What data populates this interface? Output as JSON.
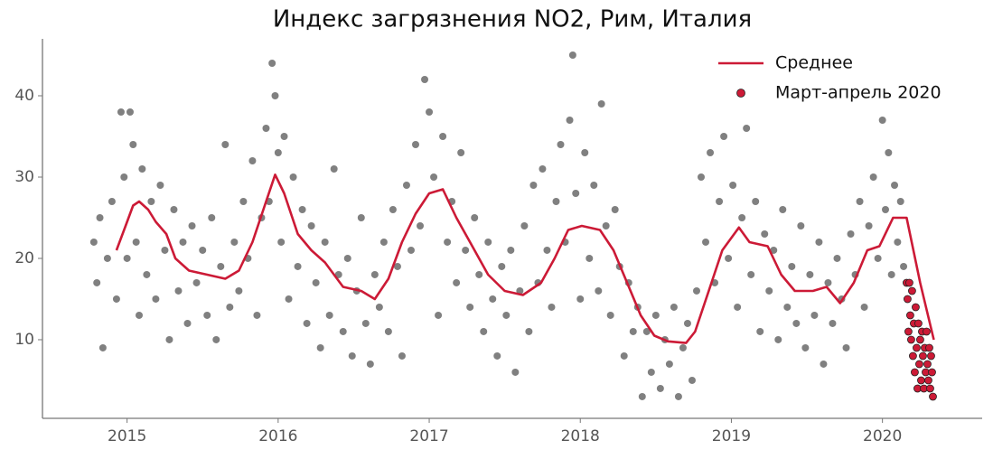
{
  "chart_data": {
    "type": "scatter",
    "title": "Индекс загрязнения NO2, Рим, Италия",
    "xlim": [
      2014.44,
      2020.66
    ],
    "xticks": [
      2015,
      2016,
      2017,
      2018,
      2019,
      2020
    ],
    "ylim": [
      0.33,
      47
    ],
    "yticks": [
      10,
      20,
      30,
      40
    ],
    "legend": "upper right",
    "series": [
      {
        "type": "scatter",
        "color": "#808080",
        "x": [
          2014.78,
          2014.8,
          2014.82,
          2014.84,
          2014.87,
          2014.9,
          2014.93,
          2014.96,
          2014.98,
          2015.0,
          2015.02,
          2015.04,
          2015.06,
          2015.08,
          2015.1,
          2015.13,
          2015.16,
          2015.19,
          2015.22,
          2015.25,
          2015.28,
          2015.31,
          2015.34,
          2015.37,
          2015.4,
          2015.43,
          2015.46,
          2015.5,
          2015.53,
          2015.56,
          2015.59,
          2015.62,
          2015.65,
          2015.68,
          2015.71,
          2015.74,
          2015.77,
          2015.8,
          2015.83,
          2015.86,
          2015.89,
          2015.92,
          2015.94,
          2015.96,
          2015.98,
          2016.0,
          2016.02,
          2016.04,
          2016.07,
          2016.1,
          2016.13,
          2016.16,
          2016.19,
          2016.22,
          2016.25,
          2016.28,
          2016.31,
          2016.34,
          2016.37,
          2016.4,
          2016.43,
          2016.46,
          2016.49,
          2016.52,
          2016.55,
          2016.58,
          2016.61,
          2016.64,
          2016.67,
          2016.7,
          2016.73,
          2016.76,
          2016.79,
          2016.82,
          2016.85,
          2016.88,
          2016.91,
          2016.94,
          2016.97,
          2017.0,
          2017.03,
          2017.06,
          2017.09,
          2017.12,
          2017.15,
          2017.18,
          2017.21,
          2017.24,
          2017.27,
          2017.3,
          2017.33,
          2017.36,
          2017.39,
          2017.42,
          2017.45,
          2017.48,
          2017.51,
          2017.54,
          2017.57,
          2017.6,
          2017.63,
          2017.66,
          2017.69,
          2017.72,
          2017.75,
          2017.78,
          2017.81,
          2017.84,
          2017.87,
          2017.9,
          2017.93,
          2017.95,
          2017.97,
          2018.0,
          2018.03,
          2018.06,
          2018.09,
          2018.12,
          2018.14,
          2018.17,
          2018.2,
          2018.23,
          2018.26,
          2018.29,
          2018.32,
          2018.35,
          2018.38,
          2018.41,
          2018.44,
          2018.47,
          2018.5,
          2018.53,
          2018.56,
          2018.59,
          2018.62,
          2018.65,
          2018.68,
          2018.71,
          2018.74,
          2018.77,
          2018.8,
          2018.83,
          2018.86,
          2018.89,
          2018.92,
          2018.95,
          2018.98,
          2019.01,
          2019.04,
          2019.07,
          2019.1,
          2019.13,
          2019.16,
          2019.19,
          2019.22,
          2019.25,
          2019.28,
          2019.31,
          2019.34,
          2019.37,
          2019.4,
          2019.43,
          2019.46,
          2019.49,
          2019.52,
          2019.55,
          2019.58,
          2019.61,
          2019.64,
          2019.67,
          2019.7,
          2019.73,
          2019.76,
          2019.79,
          2019.82,
          2019.85,
          2019.88,
          2019.91,
          2019.94,
          2019.97,
          2020.0,
          2020.02,
          2020.04,
          2020.06,
          2020.08,
          2020.1,
          2020.12,
          2020.14
        ],
        "values": [
          22,
          17,
          25,
          9,
          20,
          27,
          15,
          38,
          30,
          20,
          38,
          34,
          22,
          13,
          31,
          18,
          27,
          15,
          29,
          21,
          10,
          26,
          16,
          22,
          12,
          24,
          17,
          21,
          13,
          25,
          10,
          19,
          34,
          14,
          22,
          16,
          27,
          20,
          32,
          13,
          25,
          36,
          27,
          44,
          40,
          33,
          22,
          35,
          15,
          30,
          19,
          26,
          12,
          24,
          17,
          9,
          22,
          13,
          31,
          18,
          11,
          20,
          8,
          16,
          25,
          12,
          7,
          18,
          14,
          22,
          11,
          26,
          19,
          8,
          29,
          21,
          34,
          24,
          42,
          38,
          30,
          13,
          35,
          22,
          27,
          17,
          33,
          21,
          14,
          25,
          18,
          11,
          22,
          15,
          8,
          19,
          13,
          21,
          6,
          16,
          24,
          11,
          29,
          17,
          31,
          21,
          14,
          27,
          34,
          22,
          37,
          45,
          28,
          15,
          33,
          20,
          29,
          16,
          39,
          24,
          13,
          26,
          19,
          8,
          17,
          11,
          14,
          3,
          11,
          6,
          13,
          4,
          10,
          7,
          14,
          3,
          9,
          12,
          5,
          16,
          30,
          22,
          33,
          17,
          27,
          35,
          20,
          29,
          14,
          25,
          36,
          18,
          27,
          11,
          23,
          16,
          21,
          10,
          26,
          14,
          19,
          12,
          24,
          9,
          18,
          13,
          22,
          7,
          17,
          12,
          20,
          15,
          9,
          23,
          18,
          27,
          14,
          24,
          30,
          20,
          37,
          26,
          33,
          18,
          29,
          22,
          27,
          19
        ]
      },
      {
        "type": "line",
        "name": "Среднее",
        "color": "#cc1a36",
        "x": [
          2014.93,
          2014.99,
          2015.04,
          2015.08,
          2015.14,
          2015.19,
          2015.26,
          2015.32,
          2015.41,
          2015.53,
          2015.65,
          2015.74,
          2015.83,
          2015.92,
          2015.98,
          2016.04,
          2016.13,
          2016.22,
          2016.31,
          2016.43,
          2016.55,
          2016.64,
          2016.73,
          2016.82,
          2016.91,
          2017.0,
          2017.09,
          2017.18,
          2017.27,
          2017.39,
          2017.5,
          2017.62,
          2017.74,
          2017.83,
          2017.92,
          2018.01,
          2018.13,
          2018.22,
          2018.31,
          2018.4,
          2018.49,
          2018.58,
          2018.7,
          2018.76,
          2018.85,
          2018.94,
          2019.05,
          2019.12,
          2019.24,
          2019.33,
          2019.42,
          2019.54,
          2019.63,
          2019.72,
          2019.81,
          2019.9,
          2019.98,
          2020.07,
          2020.16,
          2020.25,
          2020.34
        ],
        "values": [
          21,
          24,
          26.5,
          27,
          26,
          24.5,
          23,
          20,
          18.5,
          18,
          17.5,
          18.5,
          22,
          27,
          30.3,
          28,
          23,
          21,
          19.5,
          16.5,
          16,
          15,
          17.5,
          22,
          25.5,
          28,
          28.5,
          25,
          22,
          18,
          16,
          15.5,
          17,
          20,
          23.5,
          24,
          23.5,
          21,
          17,
          13,
          10.5,
          9.8,
          9.6,
          11,
          16,
          21,
          23.8,
          22,
          21.5,
          18,
          16,
          16,
          16.5,
          14.5,
          17,
          21,
          21.5,
          25,
          25,
          17,
          10
        ]
      },
      {
        "type": "scatter",
        "name": "Март-апрель 2020",
        "color": "#cc1a36",
        "x": [
          2020.16,
          2020.166,
          2020.172,
          2020.178,
          2020.184,
          2020.19,
          2020.196,
          2020.202,
          2020.208,
          2020.214,
          2020.22,
          2020.226,
          2020.232,
          2020.238,
          2020.244,
          2020.25,
          2020.256,
          2020.262,
          2020.268,
          2020.274,
          2020.28,
          2020.286,
          2020.292,
          2020.298,
          2020.304,
          2020.31,
          2020.316,
          2020.322,
          2020.328,
          2020.334
        ],
        "values": [
          17,
          15,
          11,
          17,
          13,
          10,
          16,
          8,
          12,
          6,
          14,
          9,
          4,
          12,
          7,
          10,
          5,
          11,
          8,
          4,
          9,
          6,
          11,
          7,
          5,
          9,
          4,
          8,
          6,
          3
        ]
      }
    ]
  }
}
